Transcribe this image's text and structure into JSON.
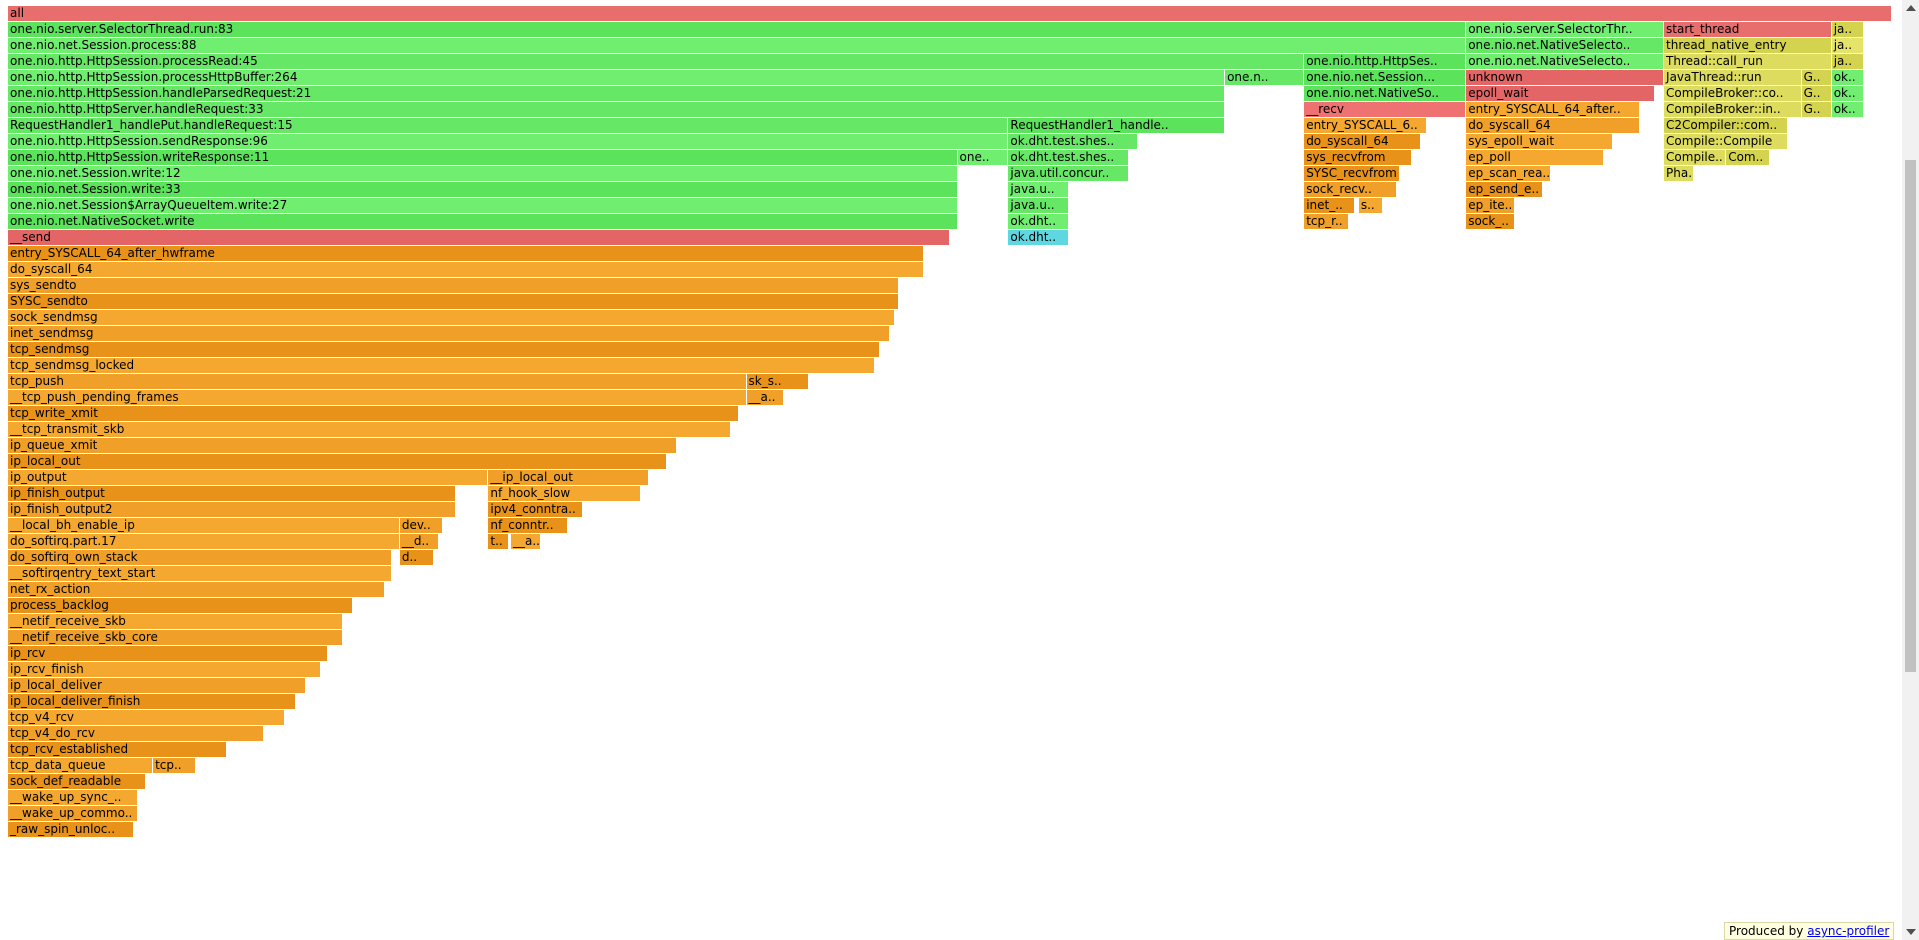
{
  "footer": {
    "prefix": "Produced by ",
    "link": "async-profiler"
  },
  "colors": {
    "red": "#e86e6e",
    "green": "#66e866",
    "aqua": "#5fd7e1",
    "orange": "#f09f28",
    "yellow": "#dddc5e"
  },
  "frames": [
    {
      "label": "all",
      "color": "red",
      "depth": 0,
      "x0": 0.0,
      "x1": 1.0
    },
    {
      "label": "one.nio.server.SelectorThread.run:83",
      "color": "green",
      "depth": 1,
      "x0": 0.0,
      "x1": 0.774
    },
    {
      "label": "one.nio.server.SelectorThr..",
      "color": "green",
      "depth": 1,
      "x0": 0.774,
      "x1": 0.879
    },
    {
      "label": "start_thread",
      "color": "red",
      "depth": 1,
      "x0": 0.879,
      "x1": 0.968
    },
    {
      "label": "ja..",
      "color": "yellow",
      "depth": 1,
      "x0": 0.968,
      "x1": 0.985
    },
    {
      "label": "one.nio.net.Session.process:88",
      "color": "green",
      "depth": 2,
      "x0": 0.0,
      "x1": 0.774
    },
    {
      "label": "one.nio.net.NativeSelecto..",
      "color": "green",
      "depth": 2,
      "x0": 0.774,
      "x1": 0.879
    },
    {
      "label": "thread_native_entry",
      "color": "yellow",
      "depth": 2,
      "x0": 0.879,
      "x1": 0.968
    },
    {
      "label": "ja..",
      "color": "yellow",
      "depth": 2,
      "x0": 0.968,
      "x1": 0.985
    },
    {
      "label": "one.nio.http.HttpSession.processRead:45",
      "color": "green",
      "depth": 3,
      "x0": 0.0,
      "x1": 0.688
    },
    {
      "label": "one.nio.http.HttpSes..",
      "color": "green",
      "depth": 3,
      "x0": 0.688,
      "x1": 0.774
    },
    {
      "label": "one.nio.net.NativeSelecto..",
      "color": "green",
      "depth": 3,
      "x0": 0.774,
      "x1": 0.879
    },
    {
      "label": "Thread::call_run",
      "color": "yellow",
      "depth": 3,
      "x0": 0.879,
      "x1": 0.968
    },
    {
      "label": "ja..",
      "color": "yellow",
      "depth": 3,
      "x0": 0.968,
      "x1": 0.985
    },
    {
      "label": "one.nio.http.HttpSession.processHttpBuffer:264",
      "color": "green",
      "depth": 4,
      "x0": 0.0,
      "x1": 0.646
    },
    {
      "label": "one.n..",
      "color": "green",
      "depth": 4,
      "x0": 0.646,
      "x1": 0.688
    },
    {
      "label": "one.nio.net.Session...",
      "color": "green",
      "depth": 4,
      "x0": 0.688,
      "x1": 0.774
    },
    {
      "label": "unknown",
      "color": "red",
      "depth": 4,
      "x0": 0.774,
      "x1": 0.879
    },
    {
      "label": "JavaThread::run",
      "color": "yellow",
      "depth": 4,
      "x0": 0.879,
      "x1": 0.952
    },
    {
      "label": "G..",
      "color": "yellow",
      "depth": 4,
      "x0": 0.952,
      "x1": 0.968
    },
    {
      "label": "ok..",
      "color": "green",
      "depth": 4,
      "x0": 0.968,
      "x1": 0.985
    },
    {
      "label": "one.nio.http.HttpSession.handleParsedRequest:21",
      "color": "green",
      "depth": 5,
      "x0": 0.0,
      "x1": 0.646
    },
    {
      "label": "one.nio.net.NativeSo..",
      "color": "green",
      "depth": 5,
      "x0": 0.688,
      "x1": 0.774
    },
    {
      "label": "epoll_wait",
      "color": "red",
      "depth": 5,
      "x0": 0.774,
      "x1": 0.874
    },
    {
      "label": "CompileBroker::co..",
      "color": "yellow",
      "depth": 5,
      "x0": 0.879,
      "x1": 0.952
    },
    {
      "label": "G..",
      "color": "yellow",
      "depth": 5,
      "x0": 0.952,
      "x1": 0.968
    },
    {
      "label": "ok..",
      "color": "green",
      "depth": 5,
      "x0": 0.968,
      "x1": 0.985
    },
    {
      "label": "one.nio.http.HttpServer.handleRequest:33",
      "color": "green",
      "depth": 6,
      "x0": 0.0,
      "x1": 0.646
    },
    {
      "label": "__recv",
      "color": "red",
      "depth": 6,
      "x0": 0.688,
      "x1": 0.774
    },
    {
      "label": "entry_SYSCALL_64_after..",
      "color": "orange",
      "depth": 6,
      "x0": 0.774,
      "x1": 0.866
    },
    {
      "label": "CompileBroker::in..",
      "color": "yellow",
      "depth": 6,
      "x0": 0.879,
      "x1": 0.952
    },
    {
      "label": "G..",
      "color": "yellow",
      "depth": 6,
      "x0": 0.952,
      "x1": 0.968
    },
    {
      "label": "ok..",
      "color": "green",
      "depth": 6,
      "x0": 0.968,
      "x1": 0.985
    },
    {
      "label": "RequestHandler1_handlePut.handleRequest:15",
      "color": "green",
      "depth": 7,
      "x0": 0.0,
      "x1": 0.531
    },
    {
      "label": "RequestHandler1_handle..",
      "color": "green",
      "depth": 7,
      "x0": 0.531,
      "x1": 0.646
    },
    {
      "label": "entry_SYSCALL_6..",
      "color": "orange",
      "depth": 7,
      "x0": 0.688,
      "x1": 0.753
    },
    {
      "label": "do_syscall_64",
      "color": "orange",
      "depth": 7,
      "x0": 0.774,
      "x1": 0.866
    },
    {
      "label": "C2Compiler::com..",
      "color": "yellow",
      "depth": 7,
      "x0": 0.879,
      "x1": 0.945
    },
    {
      "label": "one.nio.http.HttpSession.sendResponse:96",
      "color": "green",
      "depth": 8,
      "x0": 0.0,
      "x1": 0.531
    },
    {
      "label": "ok.dht.test.shes..",
      "color": "green",
      "depth": 8,
      "x0": 0.531,
      "x1": 0.6
    },
    {
      "label": "do_syscall_64",
      "color": "orange",
      "depth": 8,
      "x0": 0.688,
      "x1": 0.75
    },
    {
      "label": "sys_epoll_wait",
      "color": "orange",
      "depth": 8,
      "x0": 0.774,
      "x1": 0.852
    },
    {
      "label": "Compile::Compile",
      "color": "yellow",
      "depth": 8,
      "x0": 0.879,
      "x1": 0.945
    },
    {
      "label": "one.nio.http.HttpSession.writeResponse:11",
      "color": "green",
      "depth": 9,
      "x0": 0.0,
      "x1": 0.504
    },
    {
      "label": "one..",
      "color": "green",
      "depth": 9,
      "x0": 0.504,
      "x1": 0.531
    },
    {
      "label": "ok.dht.test.shes..",
      "color": "green",
      "depth": 9,
      "x0": 0.531,
      "x1": 0.595
    },
    {
      "label": "sys_recvfrom",
      "color": "orange",
      "depth": 9,
      "x0": 0.688,
      "x1": 0.745
    },
    {
      "label": "ep_poll",
      "color": "orange",
      "depth": 9,
      "x0": 0.774,
      "x1": 0.847
    },
    {
      "label": "Compile..",
      "color": "yellow",
      "depth": 9,
      "x0": 0.879,
      "x1": 0.912
    },
    {
      "label": "Com..",
      "color": "yellow",
      "depth": 9,
      "x0": 0.912,
      "x1": 0.935
    },
    {
      "label": "one.nio.net.Session.write:12",
      "color": "green",
      "depth": 10,
      "x0": 0.0,
      "x1": 0.504
    },
    {
      "label": "java.util.concur..",
      "color": "green",
      "depth": 10,
      "x0": 0.531,
      "x1": 0.595
    },
    {
      "label": "SYSC_recvfrom",
      "color": "orange",
      "depth": 10,
      "x0": 0.688,
      "x1": 0.739
    },
    {
      "label": "ep_scan_rea..",
      "color": "orange",
      "depth": 10,
      "x0": 0.774,
      "x1": 0.819
    },
    {
      "label": "Pha..",
      "color": "yellow",
      "depth": 10,
      "x0": 0.879,
      "x1": 0.895
    },
    {
      "label": "one.nio.net.Session.write:33",
      "color": "green",
      "depth": 11,
      "x0": 0.0,
      "x1": 0.504
    },
    {
      "label": "java.u..",
      "color": "green",
      "depth": 11,
      "x0": 0.531,
      "x1": 0.563
    },
    {
      "label": "sock_recv..",
      "color": "orange",
      "depth": 11,
      "x0": 0.688,
      "x1": 0.737
    },
    {
      "label": "ep_send_e..",
      "color": "orange",
      "depth": 11,
      "x0": 0.774,
      "x1": 0.815
    },
    {
      "label": "one.nio.net.Session$ArrayQueueItem.write:27",
      "color": "green",
      "depth": 12,
      "x0": 0.0,
      "x1": 0.504
    },
    {
      "label": "java.u..",
      "color": "green",
      "depth": 12,
      "x0": 0.531,
      "x1": 0.563
    },
    {
      "label": "inet_..",
      "color": "orange",
      "depth": 12,
      "x0": 0.688,
      "x1": 0.715
    },
    {
      "label": "s..",
      "color": "orange",
      "depth": 12,
      "x0": 0.717,
      "x1": 0.73
    },
    {
      "label": "ep_ite..",
      "color": "orange",
      "depth": 12,
      "x0": 0.774,
      "x1": 0.8
    },
    {
      "label": "one.nio.net.NativeSocket.write",
      "color": "green",
      "depth": 13,
      "x0": 0.0,
      "x1": 0.504
    },
    {
      "label": "ok.dht..",
      "color": "green",
      "depth": 13,
      "x0": 0.531,
      "x1": 0.563
    },
    {
      "label": "tcp_r..",
      "color": "orange",
      "depth": 13,
      "x0": 0.688,
      "x1": 0.712
    },
    {
      "label": "sock_..",
      "color": "orange",
      "depth": 13,
      "x0": 0.774,
      "x1": 0.8
    },
    {
      "label": "__send",
      "color": "red",
      "depth": 14,
      "x0": 0.0,
      "x1": 0.5
    },
    {
      "label": "ok.dht..",
      "color": "aqua",
      "depth": 14,
      "x0": 0.531,
      "x1": 0.563
    },
    {
      "label": "entry_SYSCALL_64_after_hwframe",
      "color": "orange",
      "depth": 15,
      "x0": 0.0,
      "x1": 0.486
    },
    {
      "label": "do_syscall_64",
      "color": "orange",
      "depth": 16,
      "x0": 0.0,
      "x1": 0.486
    },
    {
      "label": "sys_sendto",
      "color": "orange",
      "depth": 17,
      "x0": 0.0,
      "x1": 0.473
    },
    {
      "label": "SYSC_sendto",
      "color": "orange",
      "depth": 18,
      "x0": 0.0,
      "x1": 0.473
    },
    {
      "label": "sock_sendmsg",
      "color": "orange",
      "depth": 19,
      "x0": 0.0,
      "x1": 0.471
    },
    {
      "label": "inet_sendmsg",
      "color": "orange",
      "depth": 20,
      "x0": 0.0,
      "x1": 0.468
    },
    {
      "label": "tcp_sendmsg",
      "color": "orange",
      "depth": 21,
      "x0": 0.0,
      "x1": 0.463
    },
    {
      "label": "tcp_sendmsg_locked",
      "color": "orange",
      "depth": 22,
      "x0": 0.0,
      "x1": 0.46
    },
    {
      "label": "tcp_push",
      "color": "orange",
      "depth": 23,
      "x0": 0.0,
      "x1": 0.392
    },
    {
      "label": "sk_s..",
      "color": "orange",
      "depth": 23,
      "x0": 0.392,
      "x1": 0.425
    },
    {
      "label": "__tcp_push_pending_frames",
      "color": "orange",
      "depth": 24,
      "x0": 0.0,
      "x1": 0.392
    },
    {
      "label": "__a..",
      "color": "orange",
      "depth": 24,
      "x0": 0.392,
      "x1": 0.412
    },
    {
      "label": "tcp_write_xmit",
      "color": "orange",
      "depth": 25,
      "x0": 0.0,
      "x1": 0.388
    },
    {
      "label": "__tcp_transmit_skb",
      "color": "orange",
      "depth": 26,
      "x0": 0.0,
      "x1": 0.384
    },
    {
      "label": "ip_queue_xmit",
      "color": "orange",
      "depth": 27,
      "x0": 0.0,
      "x1": 0.355
    },
    {
      "label": "ip_local_out",
      "color": "orange",
      "depth": 28,
      "x0": 0.0,
      "x1": 0.35
    },
    {
      "label": "ip_output",
      "color": "orange",
      "depth": 29,
      "x0": 0.0,
      "x1": 0.255
    },
    {
      "label": "__ip_local_out",
      "color": "orange",
      "depth": 29,
      "x0": 0.255,
      "x1": 0.34
    },
    {
      "label": "ip_finish_output",
      "color": "orange",
      "depth": 30,
      "x0": 0.0,
      "x1": 0.238
    },
    {
      "label": "nf_hook_slow",
      "color": "orange",
      "depth": 30,
      "x0": 0.255,
      "x1": 0.336
    },
    {
      "label": "ip_finish_output2",
      "color": "orange",
      "depth": 31,
      "x0": 0.0,
      "x1": 0.238
    },
    {
      "label": "ipv4_conntra..",
      "color": "orange",
      "depth": 31,
      "x0": 0.255,
      "x1": 0.305
    },
    {
      "label": "__local_bh_enable_ip",
      "color": "orange",
      "depth": 32,
      "x0": 0.0,
      "x1": 0.208
    },
    {
      "label": "dev..",
      "color": "orange",
      "depth": 32,
      "x0": 0.208,
      "x1": 0.231
    },
    {
      "label": "nf_conntr..",
      "color": "orange",
      "depth": 32,
      "x0": 0.255,
      "x1": 0.297
    },
    {
      "label": "do_softirq.part.17",
      "color": "orange",
      "depth": 33,
      "x0": 0.0,
      "x1": 0.208
    },
    {
      "label": "__d..",
      "color": "orange",
      "depth": 33,
      "x0": 0.208,
      "x1": 0.229
    },
    {
      "label": "t..",
      "color": "orange",
      "depth": 33,
      "x0": 0.255,
      "x1": 0.266
    },
    {
      "label": "__a..",
      "color": "orange",
      "depth": 33,
      "x0": 0.267,
      "x1": 0.283
    },
    {
      "label": "do_softirq_own_stack",
      "color": "orange",
      "depth": 34,
      "x0": 0.0,
      "x1": 0.204
    },
    {
      "label": "d..",
      "color": "orange",
      "depth": 34,
      "x0": 0.208,
      "x1": 0.226
    },
    {
      "label": "__softirqentry_text_start",
      "color": "orange",
      "depth": 35,
      "x0": 0.0,
      "x1": 0.204
    },
    {
      "label": "net_rx_action",
      "color": "orange",
      "depth": 36,
      "x0": 0.0,
      "x1": 0.2
    },
    {
      "label": "process_backlog",
      "color": "orange",
      "depth": 37,
      "x0": 0.0,
      "x1": 0.183
    },
    {
      "label": "__netif_receive_skb",
      "color": "orange",
      "depth": 38,
      "x0": 0.0,
      "x1": 0.178
    },
    {
      "label": "__netif_receive_skb_core",
      "color": "orange",
      "depth": 39,
      "x0": 0.0,
      "x1": 0.178
    },
    {
      "label": "ip_rcv",
      "color": "orange",
      "depth": 40,
      "x0": 0.0,
      "x1": 0.17
    },
    {
      "label": "ip_rcv_finish",
      "color": "orange",
      "depth": 41,
      "x0": 0.0,
      "x1": 0.166
    },
    {
      "label": "ip_local_deliver",
      "color": "orange",
      "depth": 42,
      "x0": 0.0,
      "x1": 0.158
    },
    {
      "label": "ip_local_deliver_finish",
      "color": "orange",
      "depth": 43,
      "x0": 0.0,
      "x1": 0.153
    },
    {
      "label": "tcp_v4_rcv",
      "color": "orange",
      "depth": 44,
      "x0": 0.0,
      "x1": 0.147
    },
    {
      "label": "tcp_v4_do_rcv",
      "color": "orange",
      "depth": 45,
      "x0": 0.0,
      "x1": 0.136
    },
    {
      "label": "tcp_rcv_established",
      "color": "orange",
      "depth": 46,
      "x0": 0.0,
      "x1": 0.116
    },
    {
      "label": "tcp_data_queue",
      "color": "orange",
      "depth": 47,
      "x0": 0.0,
      "x1": 0.077
    },
    {
      "label": "tcp..",
      "color": "orange",
      "depth": 47,
      "x0": 0.077,
      "x1": 0.1
    },
    {
      "label": "sock_def_readable",
      "color": "orange",
      "depth": 48,
      "x0": 0.0,
      "x1": 0.073
    },
    {
      "label": "__wake_up_sync_..",
      "color": "orange",
      "depth": 49,
      "x0": 0.0,
      "x1": 0.069
    },
    {
      "label": "__wake_up_commo..",
      "color": "orange",
      "depth": 50,
      "x0": 0.0,
      "x1": 0.069
    },
    {
      "label": "_raw_spin_unloc..",
      "color": "orange",
      "depth": 51,
      "x0": 0.0,
      "x1": 0.067
    }
  ]
}
